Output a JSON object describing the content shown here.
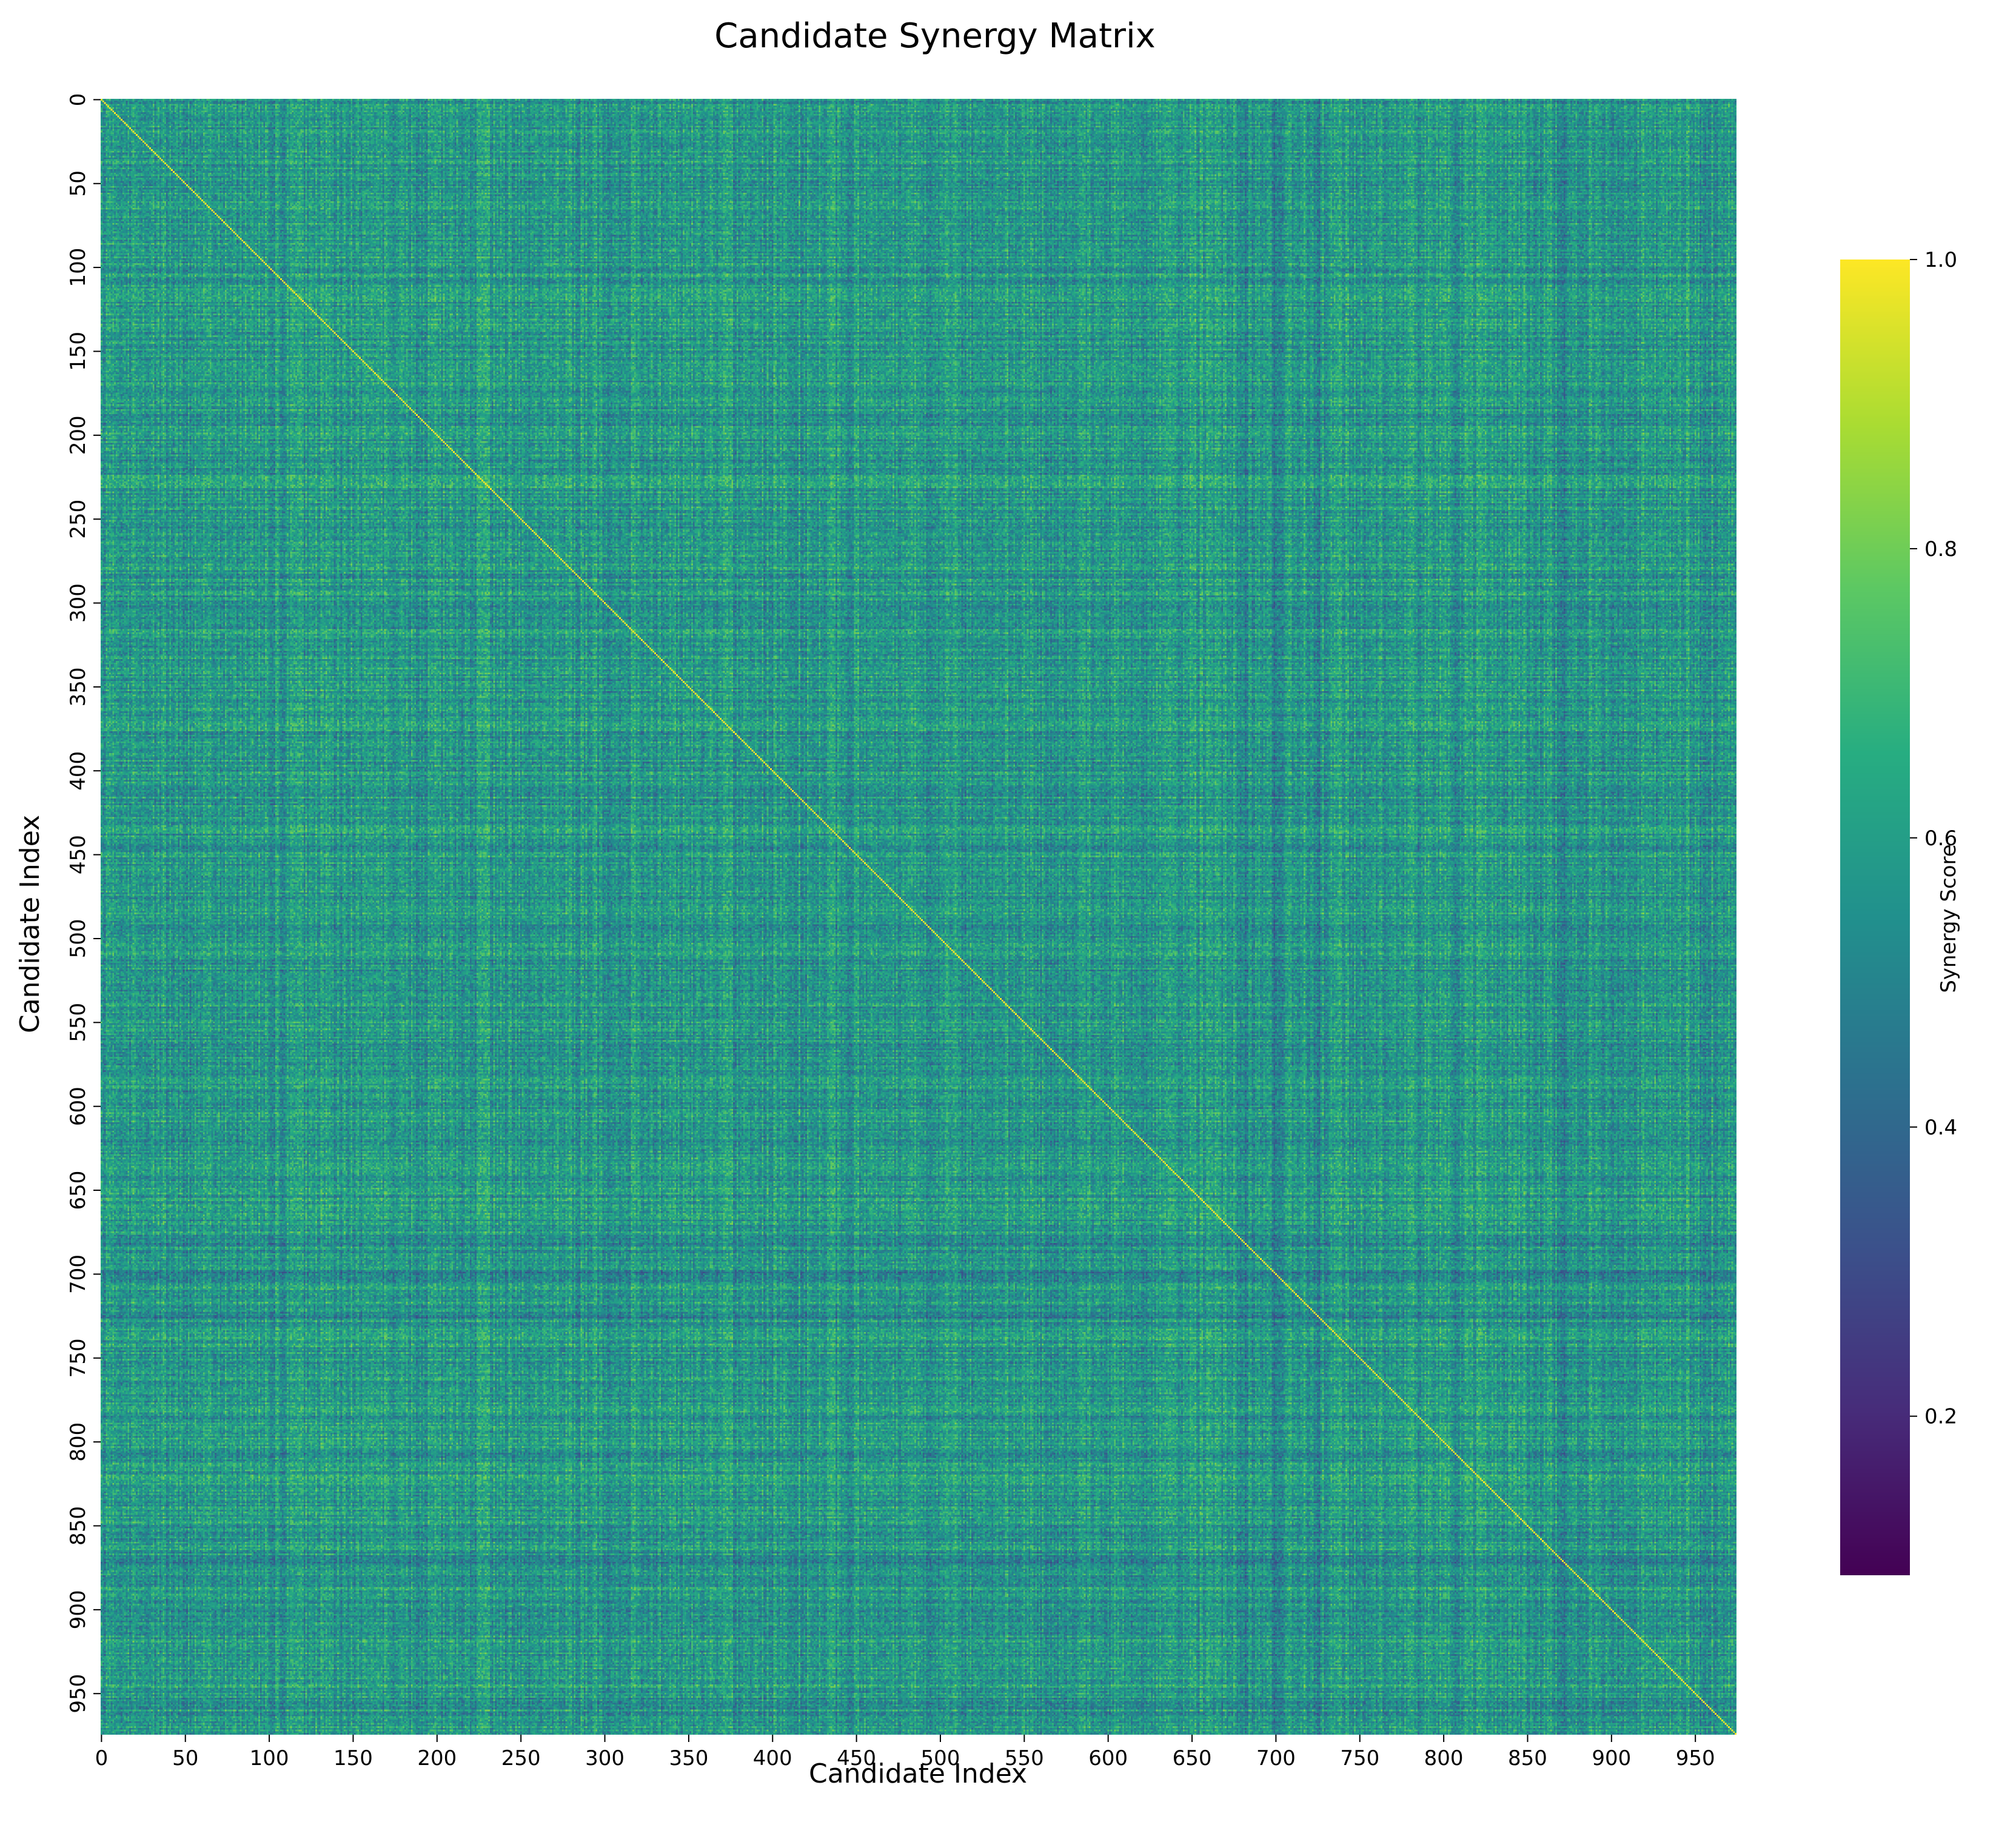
{
  "chart_data": {
    "type": "heatmap",
    "title": "Candidate Synergy Matrix",
    "xlabel": "Candidate Index",
    "ylabel": "Candidate Index",
    "n_candidates": 975,
    "x_ticks": [
      0,
      50,
      100,
      150,
      200,
      250,
      300,
      350,
      400,
      450,
      500,
      550,
      600,
      650,
      700,
      750,
      800,
      850,
      900,
      950
    ],
    "y_ticks": [
      0,
      50,
      100,
      150,
      200,
      250,
      300,
      350,
      400,
      450,
      500,
      550,
      600,
      650,
      700,
      750,
      800,
      850,
      900,
      950
    ],
    "diagonal_value": 1.0,
    "off_diagonal_typical_range": [
      0.35,
      0.8
    ],
    "off_diagonal_mean": 0.58,
    "darker_bands_near_index": [
      680,
      700,
      725,
      870
    ],
    "colorbar": {
      "label": "Synergy Score",
      "vmin": 0.09,
      "vmax": 1.0,
      "ticks": [
        0.2,
        0.4,
        0.6,
        0.8,
        1.0
      ],
      "tick_labels": [
        "0.2",
        "0.4",
        "0.6",
        "0.8",
        "1.0"
      ]
    },
    "colormap": "viridis",
    "grid": false
  }
}
